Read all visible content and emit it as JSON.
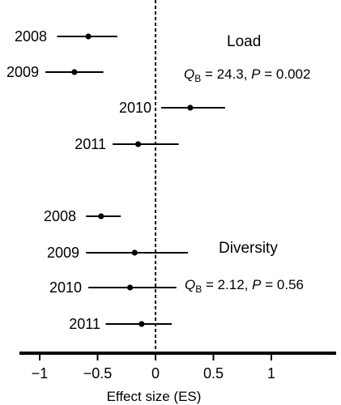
{
  "chart_data": {
    "type": "forest",
    "xlabel": "Effect size (ES)",
    "xlim": [
      -1.15,
      1.05
    ],
    "xticks": [
      -1,
      -0.5,
      0,
      0.5,
      1
    ],
    "xtick_labels": [
      "−1",
      "−0.5",
      "0",
      "0.5",
      "1"
    ],
    "reference_line": 0,
    "groups": [
      {
        "name": "Load",
        "stat": {
          "q": "Q",
          "sub": "B",
          "text": " = 24.3, ",
          "p": "P",
          "ptext": " = 0.002"
        },
        "entries": [
          {
            "year": "2008",
            "es": -0.58,
            "low": -0.85,
            "high": -0.33
          },
          {
            "year": "2009",
            "es": -0.7,
            "low": -0.95,
            "high": -0.45
          },
          {
            "year": "2010",
            "es": 0.3,
            "low": 0.05,
            "high": 0.6
          },
          {
            "year": "2011",
            "es": -0.15,
            "low": -0.37,
            "high": 0.2
          }
        ]
      },
      {
        "name": "Diversity",
        "stat": {
          "q": "Q",
          "sub": "B",
          "text": " = 2.12, ",
          "p": "P",
          "ptext": " = 0.56"
        },
        "entries": [
          {
            "year": "2008",
            "es": -0.47,
            "low": -0.6,
            "high": -0.3
          },
          {
            "year": "2009",
            "es": -0.18,
            "low": -0.6,
            "high": 0.28
          },
          {
            "year": "2010",
            "es": -0.22,
            "low": -0.58,
            "high": 0.18
          },
          {
            "year": "2011",
            "es": -0.12,
            "low": -0.43,
            "high": 0.14
          }
        ]
      }
    ]
  }
}
